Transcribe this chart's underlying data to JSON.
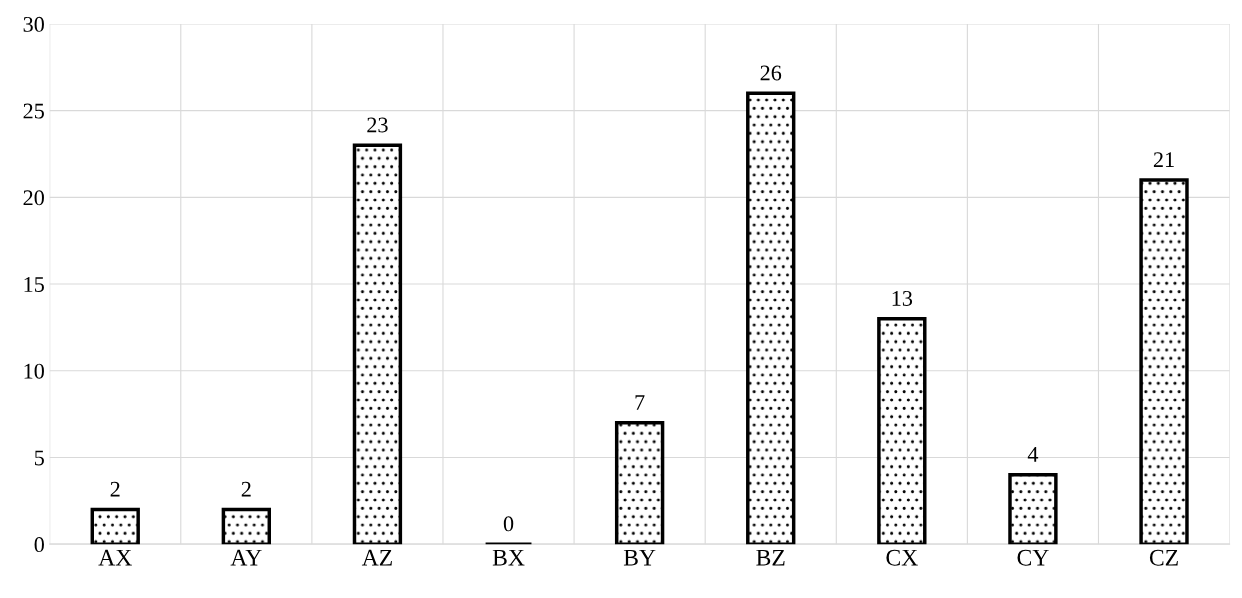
{
  "chart_data": {
    "type": "bar",
    "categories": [
      "AX",
      "AY",
      "AZ",
      "BX",
      "BY",
      "BZ",
      "CX",
      "CY",
      "CZ"
    ],
    "values": [
      2,
      2,
      23,
      0,
      7,
      26,
      13,
      4,
      21
    ],
    "color": "#000000",
    "ylim": [
      0,
      30
    ],
    "yticks": [
      0,
      5,
      10,
      15,
      20,
      25,
      30
    ],
    "data_labels": true,
    "grid": true,
    "legend": false
  }
}
